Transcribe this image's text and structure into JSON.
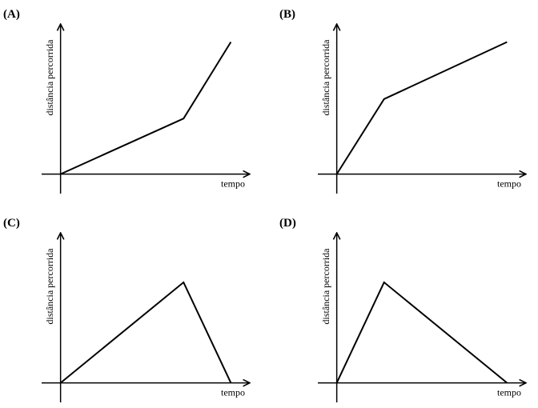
{
  "chart_data": [
    {
      "type": "line",
      "label": "(A)",
      "ylabel": "distância percorrida",
      "xlabel": "tempo",
      "x": [
        0,
        6.5,
        9
      ],
      "values": [
        0,
        3.7,
        8.8
      ],
      "xlim": [
        -1,
        10
      ],
      "ylim": [
        -1.3,
        10
      ]
    },
    {
      "type": "line",
      "label": "(B)",
      "ylabel": "distância percorrida",
      "xlabel": "tempo",
      "x": [
        0,
        2.5,
        9
      ],
      "values": [
        0,
        5,
        8.8
      ],
      "xlim": [
        -1,
        10
      ],
      "ylim": [
        -1.3,
        10
      ]
    },
    {
      "type": "line",
      "label": "(C)",
      "ylabel": "distância percorrida",
      "xlabel": "tempo",
      "x": [
        0,
        6.5,
        9
      ],
      "values": [
        0,
        6.7,
        0
      ],
      "xlim": [
        -1,
        10
      ],
      "ylim": [
        -1.3,
        10
      ]
    },
    {
      "type": "line",
      "label": "(D)",
      "ylabel": "distância percorrida",
      "xlabel": "tempo",
      "x": [
        0,
        2.5,
        9
      ],
      "values": [
        0,
        6.7,
        0
      ],
      "xlim": [
        -1,
        10
      ],
      "ylim": [
        -1.3,
        10
      ]
    }
  ]
}
